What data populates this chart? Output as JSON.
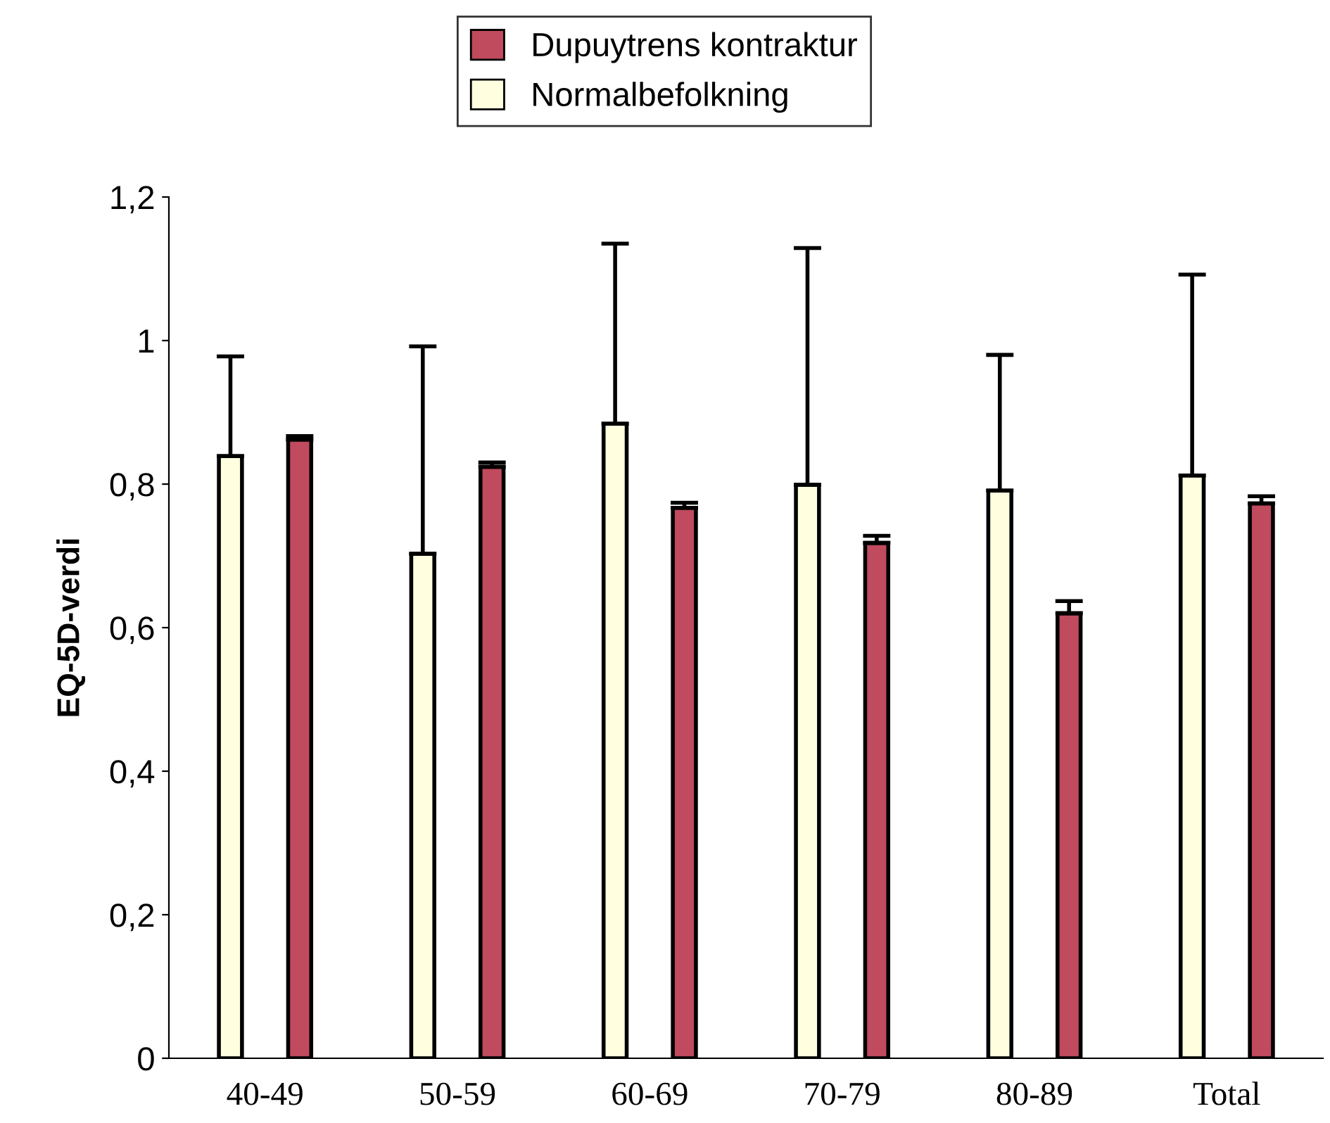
{
  "chart_data": {
    "type": "bar",
    "ylabel": "EQ-5D-verdi",
    "categories": [
      "40-49",
      "50-59",
      "60-69",
      "70-79",
      "80-89",
      "Total"
    ],
    "series": [
      {
        "name": "Normalbefolkning",
        "color": "#ffffe0",
        "values": [
          0.839,
          0.703,
          0.884,
          0.799,
          0.791,
          0.812
        ],
        "errors": [
          [
            0.839,
            0.978
          ],
          [
            0.703,
            0.992
          ],
          [
            0.884,
            1.135
          ],
          [
            0.799,
            1.129
          ],
          [
            0.791,
            0.98
          ],
          [
            0.812,
            1.092
          ]
        ]
      },
      {
        "name": "Dupuytrens kontraktur",
        "color": "#c04a5e",
        "values": [
          0.862,
          0.824,
          0.767,
          0.718,
          0.62,
          0.773
        ],
        "errors": [
          [
            0.862,
            0.867
          ],
          [
            0.824,
            0.83
          ],
          [
            0.767,
            0.774
          ],
          [
            0.718,
            0.728
          ],
          [
            0.62,
            0.637
          ],
          [
            0.773,
            0.783
          ]
        ]
      }
    ],
    "ylim": [
      0,
      1.2
    ],
    "yticks": [
      0,
      {
        "value": 0.2,
        "label": "0,2"
      },
      {
        "value": 0.4,
        "label": "0,4"
      },
      {
        "value": 0.6,
        "label": "0,6"
      },
      {
        "value": 0.8,
        "label": "0,8"
      },
      1,
      {
        "value": 1.2,
        "label": "1,2"
      }
    ],
    "grid": false,
    "legend": "top"
  }
}
